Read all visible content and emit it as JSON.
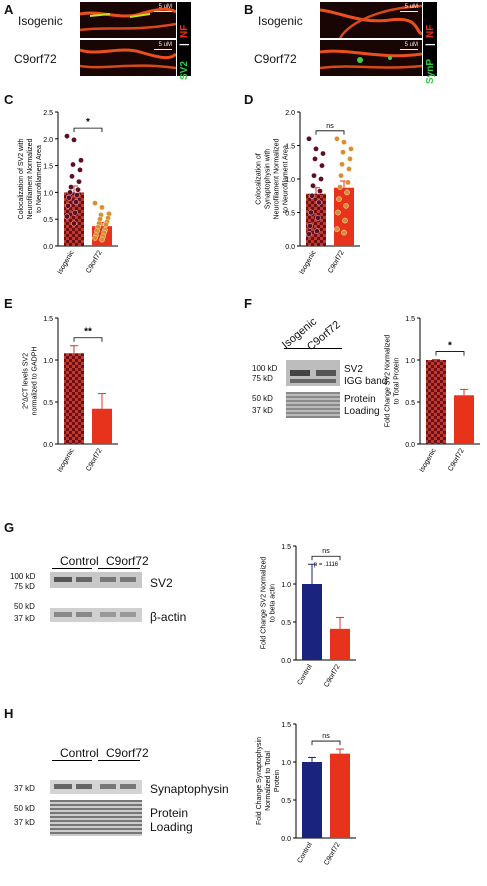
{
  "panels": {
    "A": {
      "label": "A",
      "rows": [
        "Isogenic",
        "C9orf72"
      ],
      "scale_text": "5 uM",
      "channels": [
        {
          "name": "SV2",
          "color": "#2ecc40"
        },
        {
          "name": "NF",
          "color": "#e8331c"
        }
      ]
    },
    "B": {
      "label": "B",
      "rows": [
        "Isogenic",
        "C9orf72"
      ],
      "scale_text": "5 uM",
      "channels": [
        {
          "name": "SynP",
          "color": "#2ecc40"
        },
        {
          "name": "NF",
          "color": "#e8331c"
        }
      ]
    },
    "E": {
      "label": "E"
    },
    "F": {
      "label": "F",
      "blot_headers": [
        "Isogenic",
        "C9orf72"
      ],
      "markers_top": [
        "100 kD",
        "75 kD"
      ],
      "markers_bottom": [
        "50 kD",
        "37 kD"
      ],
      "band_labels": [
        "SV2",
        "IGG band",
        "Protein",
        "Loading"
      ]
    },
    "G": {
      "label": "G",
      "blot_headers": [
        "Control",
        "C9orf72"
      ],
      "markers_top": [
        "100 kD",
        "75 kD"
      ],
      "markers_bottom": [
        "50 kD",
        "37 kD"
      ],
      "band_labels": [
        "SV2",
        "β-actin"
      ]
    },
    "H": {
      "label": "H",
      "blot_headers": [
        "Control",
        "C9orf72"
      ],
      "markers_top": [
        "37 kD"
      ],
      "markers_bottom": [
        "50 kD",
        "37 kD"
      ],
      "band_labels": [
        "Synaptophysin",
        "Protein",
        "Loading"
      ]
    }
  },
  "chart_data": [
    {
      "id": "C",
      "label": "C",
      "type": "bar",
      "categories": [
        "Isogenic",
        "C9orf72"
      ],
      "values": [
        1.0,
        0.37
      ],
      "errors": [
        0.12,
        0.07
      ],
      "ylabel": "Colocalization of SV2 with Neurofilament Normalized to Neurofilament Area",
      "ylim": [
        0,
        2.5
      ],
      "yticks": [
        "0.0",
        "0.5",
        "1.0",
        "1.5",
        "2.0",
        "2.5"
      ],
      "significance": "*",
      "colors": [
        "#c0392b",
        "#e8331c"
      ],
      "points": [
        [
          2.05,
          1.98,
          1.6,
          1.52,
          1.42,
          1.3,
          1.2,
          1.1,
          1.05,
          1.0,
          0.95,
          0.9,
          0.82,
          0.75,
          0.62,
          0.55,
          0.42
        ],
        [
          0.8,
          0.72,
          0.6,
          0.58,
          0.52,
          0.5,
          0.45,
          0.42,
          0.4,
          0.35,
          0.3,
          0.28,
          0.25,
          0.2,
          0.18,
          0.15,
          0.12
        ]
      ],
      "point_colors": [
        "#5c0f24",
        "#d9902b"
      ]
    },
    {
      "id": "D",
      "label": "D",
      "type": "bar",
      "categories": [
        "Isogenic",
        "C9orf72"
      ],
      "values": [
        0.78,
        0.87
      ],
      "errors": [
        0.09,
        0.1
      ],
      "ylabel": "Colocalization of Synaptophysin with Neurofilament Normalized to Neurofilament Area",
      "ylim": [
        0,
        2.0
      ],
      "yticks": [
        "0.0",
        "0.5",
        "1.0",
        "1.5",
        "2.0"
      ],
      "significance": "ns",
      "colors": [
        "#c0392b",
        "#e8331c"
      ],
      "points": [
        [
          1.6,
          1.45,
          1.38,
          1.3,
          1.2,
          1.05,
          1.0,
          0.9,
          0.82,
          0.75,
          0.65,
          0.5,
          0.42,
          0.3,
          0.22,
          0.18
        ],
        [
          1.6,
          1.55,
          1.45,
          1.4,
          1.3,
          1.22,
          1.15,
          1.05,
          0.95,
          0.88,
          0.8,
          0.7,
          0.6,
          0.5,
          0.38,
          0.25,
          0.2
        ]
      ],
      "point_colors": [
        "#5c0f24",
        "#d9902b"
      ]
    },
    {
      "id": "E",
      "label": "E",
      "type": "bar",
      "categories": [
        "Isogenic",
        "C9orf72"
      ],
      "values": [
        1.08,
        0.42
      ],
      "errors": [
        0.09,
        0.18
      ],
      "ylabel": "2^ΔCT levels SV2 normalized to GADPH",
      "ylim": [
        0,
        1.5
      ],
      "yticks": [
        "0.0",
        "0.5",
        "1.0",
        "1.5"
      ],
      "significance": "**",
      "colors": [
        "#c0392b",
        "#e8331c"
      ]
    },
    {
      "id": "F",
      "label": "",
      "type": "bar",
      "categories": [
        "Isogenic",
        "C9orf72"
      ],
      "values": [
        1.0,
        0.58
      ],
      "errors": [
        0.005,
        0.07
      ],
      "ylabel": "Fold Change SV2 Normalized to Total Protein",
      "ylim": [
        0,
        1.5
      ],
      "yticks": [
        "0.0",
        "0.5",
        "1.0",
        "1.5"
      ],
      "significance": "*",
      "colors": [
        "#c0392b",
        "#e8331c"
      ]
    },
    {
      "id": "G",
      "label": "",
      "type": "bar",
      "categories": [
        "Control",
        "C9orf72"
      ],
      "values": [
        1.0,
        0.41
      ],
      "errors": [
        0.26,
        0.15
      ],
      "ylabel": "Fold Change SV2 Normalized to beta actin",
      "ylim": [
        0,
        1.5
      ],
      "yticks": [
        "0.0",
        "0.5",
        "1.0",
        "1.5"
      ],
      "significance": "ns",
      "sig_note": "p = .1116",
      "colors": [
        "#1a237e",
        "#e8331c"
      ]
    },
    {
      "id": "H",
      "label": "",
      "type": "bar",
      "categories": [
        "Control",
        "C9orf72"
      ],
      "values": [
        1.0,
        1.11
      ],
      "errors": [
        0.06,
        0.06
      ],
      "ylabel": "Fold Change Synaptophysin Normalized to Total Protein",
      "ylim": [
        0,
        1.5
      ],
      "yticks": [
        "0.0",
        "0.5",
        "1.0",
        "1.5"
      ],
      "significance": "ns",
      "colors": [
        "#1a237e",
        "#e8331c"
      ]
    }
  ]
}
